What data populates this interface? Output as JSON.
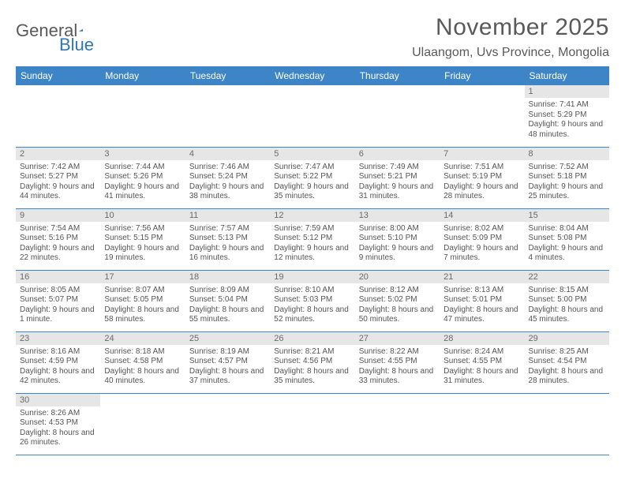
{
  "logo": {
    "text1": "General",
    "text2": "Blue",
    "triangle_color": "#2f78b7"
  },
  "title": "November 2025",
  "location": "Ulaangom, Uvs Province, Mongolia",
  "colors": {
    "header_bg": "#3d85c6",
    "header_text": "#ffffff",
    "daynum_bg": "#e6e6e6",
    "border": "#3d85c6",
    "body_text": "#555555",
    "title_text": "#5a5a5a"
  },
  "weekdays": [
    "Sunday",
    "Monday",
    "Tuesday",
    "Wednesday",
    "Thursday",
    "Friday",
    "Saturday"
  ],
  "weeks": [
    [
      null,
      null,
      null,
      null,
      null,
      null,
      {
        "n": "1",
        "sr": "7:41 AM",
        "ss": "5:29 PM",
        "dl": "9 hours and 48 minutes."
      }
    ],
    [
      {
        "n": "2",
        "sr": "7:42 AM",
        "ss": "5:27 PM",
        "dl": "9 hours and 44 minutes."
      },
      {
        "n": "3",
        "sr": "7:44 AM",
        "ss": "5:26 PM",
        "dl": "9 hours and 41 minutes."
      },
      {
        "n": "4",
        "sr": "7:46 AM",
        "ss": "5:24 PM",
        "dl": "9 hours and 38 minutes."
      },
      {
        "n": "5",
        "sr": "7:47 AM",
        "ss": "5:22 PM",
        "dl": "9 hours and 35 minutes."
      },
      {
        "n": "6",
        "sr": "7:49 AM",
        "ss": "5:21 PM",
        "dl": "9 hours and 31 minutes."
      },
      {
        "n": "7",
        "sr": "7:51 AM",
        "ss": "5:19 PM",
        "dl": "9 hours and 28 minutes."
      },
      {
        "n": "8",
        "sr": "7:52 AM",
        "ss": "5:18 PM",
        "dl": "9 hours and 25 minutes."
      }
    ],
    [
      {
        "n": "9",
        "sr": "7:54 AM",
        "ss": "5:16 PM",
        "dl": "9 hours and 22 minutes."
      },
      {
        "n": "10",
        "sr": "7:56 AM",
        "ss": "5:15 PM",
        "dl": "9 hours and 19 minutes."
      },
      {
        "n": "11",
        "sr": "7:57 AM",
        "ss": "5:13 PM",
        "dl": "9 hours and 16 minutes."
      },
      {
        "n": "12",
        "sr": "7:59 AM",
        "ss": "5:12 PM",
        "dl": "9 hours and 12 minutes."
      },
      {
        "n": "13",
        "sr": "8:00 AM",
        "ss": "5:10 PM",
        "dl": "9 hours and 9 minutes."
      },
      {
        "n": "14",
        "sr": "8:02 AM",
        "ss": "5:09 PM",
        "dl": "9 hours and 7 minutes."
      },
      {
        "n": "15",
        "sr": "8:04 AM",
        "ss": "5:08 PM",
        "dl": "9 hours and 4 minutes."
      }
    ],
    [
      {
        "n": "16",
        "sr": "8:05 AM",
        "ss": "5:07 PM",
        "dl": "9 hours and 1 minute."
      },
      {
        "n": "17",
        "sr": "8:07 AM",
        "ss": "5:05 PM",
        "dl": "8 hours and 58 minutes."
      },
      {
        "n": "18",
        "sr": "8:09 AM",
        "ss": "5:04 PM",
        "dl": "8 hours and 55 minutes."
      },
      {
        "n": "19",
        "sr": "8:10 AM",
        "ss": "5:03 PM",
        "dl": "8 hours and 52 minutes."
      },
      {
        "n": "20",
        "sr": "8:12 AM",
        "ss": "5:02 PM",
        "dl": "8 hours and 50 minutes."
      },
      {
        "n": "21",
        "sr": "8:13 AM",
        "ss": "5:01 PM",
        "dl": "8 hours and 47 minutes."
      },
      {
        "n": "22",
        "sr": "8:15 AM",
        "ss": "5:00 PM",
        "dl": "8 hours and 45 minutes."
      }
    ],
    [
      {
        "n": "23",
        "sr": "8:16 AM",
        "ss": "4:59 PM",
        "dl": "8 hours and 42 minutes."
      },
      {
        "n": "24",
        "sr": "8:18 AM",
        "ss": "4:58 PM",
        "dl": "8 hours and 40 minutes."
      },
      {
        "n": "25",
        "sr": "8:19 AM",
        "ss": "4:57 PM",
        "dl": "8 hours and 37 minutes."
      },
      {
        "n": "26",
        "sr": "8:21 AM",
        "ss": "4:56 PM",
        "dl": "8 hours and 35 minutes."
      },
      {
        "n": "27",
        "sr": "8:22 AM",
        "ss": "4:55 PM",
        "dl": "8 hours and 33 minutes."
      },
      {
        "n": "28",
        "sr": "8:24 AM",
        "ss": "4:55 PM",
        "dl": "8 hours and 31 minutes."
      },
      {
        "n": "29",
        "sr": "8:25 AM",
        "ss": "4:54 PM",
        "dl": "8 hours and 28 minutes."
      }
    ],
    [
      {
        "n": "30",
        "sr": "8:26 AM",
        "ss": "4:53 PM",
        "dl": "8 hours and 26 minutes."
      },
      null,
      null,
      null,
      null,
      null,
      null
    ]
  ],
  "labels": {
    "sunrise": "Sunrise:",
    "sunset": "Sunset:",
    "daylight": "Daylight:"
  }
}
